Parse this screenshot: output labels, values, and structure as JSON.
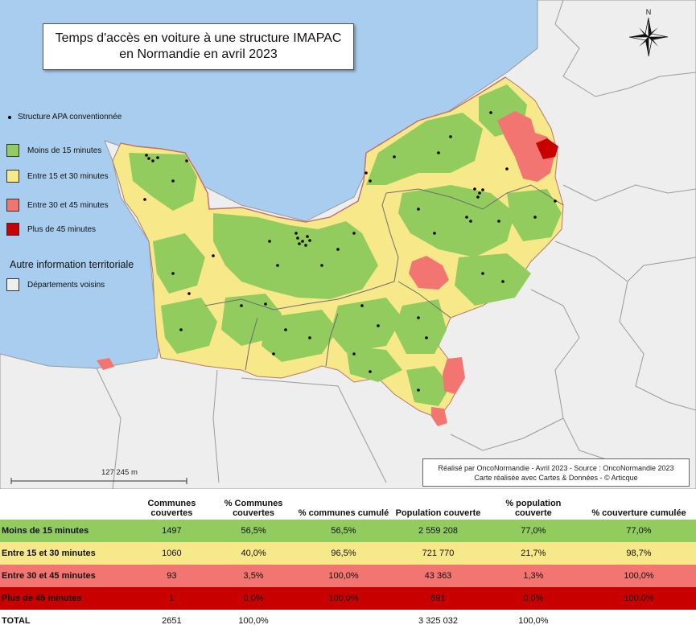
{
  "map": {
    "title_line1": "Temps d'accès en voiture à une structure IMAPAC",
    "title_line2": "en Normandie en avril 2023",
    "north_label": "N",
    "scale_label": "127 245 m",
    "credit_line1": "Réalisé par OncoNormandie - Avril 2023 - Source : OncoNormandie 2023",
    "credit_line2": "Carte réalisée avec Cartes & Données - © Articque",
    "colors": {
      "sea": "#a9cdee",
      "neighbors": "#eeeeee",
      "green": "#92cc5e",
      "yellow": "#f7e98a",
      "pink": "#f37571",
      "red": "#c80000"
    }
  },
  "legend": {
    "point_label": "Structure APA conventionnée",
    "classes": [
      {
        "label": "Moins de 15 minutes",
        "color": "#92cc5e"
      },
      {
        "label": "Entre 15 et 30 minutes",
        "color": "#f7e98a"
      },
      {
        "label": "Entre 30 et 45 minutes",
        "color": "#f37571"
      },
      {
        "label": "Plus de 45 minutes",
        "color": "#c80000"
      }
    ],
    "other_title": "Autre information territoriale",
    "neighbors_label": "Départements voisins",
    "neighbors_color": "#eeeeee"
  },
  "table": {
    "headers": [
      "",
      "Communes couvertes",
      "% Communes couvertes",
      "% communes cumulé",
      "Population couverte",
      "% population couverte",
      "% couverture cumulée"
    ],
    "rows": [
      [
        "Moins de 15 minutes",
        "1497",
        "56,5%",
        "56,5%",
        "2 559 208",
        "77,0%",
        "77,0%"
      ],
      [
        "Entre 15 et 30 minutes",
        "1060",
        "40,0%",
        "96,5%",
        "721 770",
        "21,7%",
        "98,7%"
      ],
      [
        "Entre 30 et 45 minutes",
        "93",
        "3,5%",
        "100,0%",
        "43 363",
        "1,3%",
        "100,0%"
      ],
      [
        "Plus de 45 minutes",
        "1",
        "0,0%",
        "100,0%",
        "691",
        "0,0%",
        "100,0%"
      ],
      [
        "TOTAL",
        "2651",
        "100,0%",
        "",
        "3 325 032",
        "100,0%",
        ""
      ]
    ]
  }
}
